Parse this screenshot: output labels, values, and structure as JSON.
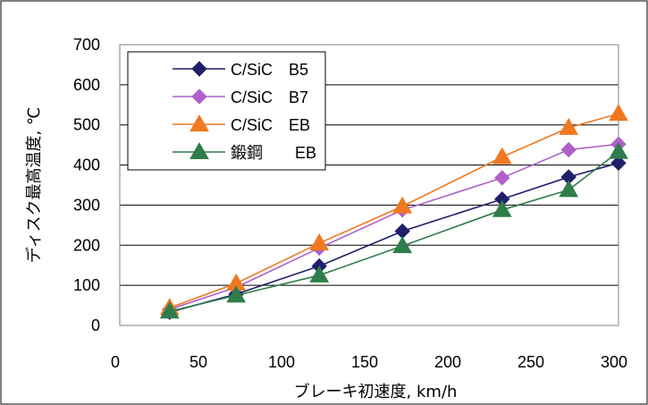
{
  "chart_data": {
    "type": "line",
    "xlabel": "ブレーキ初速度, km/h",
    "ylabel": "ディスク最高温度, ℃",
    "xlim": [
      0,
      300
    ],
    "ylim": [
      0,
      700
    ],
    "xticks": [
      "0",
      "50",
      "100",
      "150",
      "200",
      "250",
      "300"
    ],
    "yticks": [
      "0",
      "100",
      "200",
      "300",
      "400",
      "500",
      "600",
      "700"
    ],
    "grid": "horizontal",
    "legend_position": "top-left",
    "x": [
      30,
      70,
      120,
      170,
      230,
      270,
      300
    ],
    "series": [
      {
        "name": "C/SiC　B5",
        "color": "#1f1f6b",
        "marker": "diamond",
        "values": [
          33,
          78,
          148,
          235,
          315,
          370,
          405
        ]
      },
      {
        "name": "C/SiC　B7",
        "color": "#b060c8",
        "marker": "diamond",
        "values": [
          40,
          95,
          193,
          288,
          368,
          438,
          452
        ]
      },
      {
        "name": "C/SiC　EB",
        "color": "#f07820",
        "marker": "triangle",
        "values": [
          44,
          105,
          205,
          297,
          420,
          493,
          528
        ]
      },
      {
        "name": "鍛鋼　　EB",
        "color": "#2e7d4a",
        "marker": "triangle",
        "values": [
          35,
          75,
          125,
          198,
          288,
          338,
          433
        ]
      }
    ]
  }
}
